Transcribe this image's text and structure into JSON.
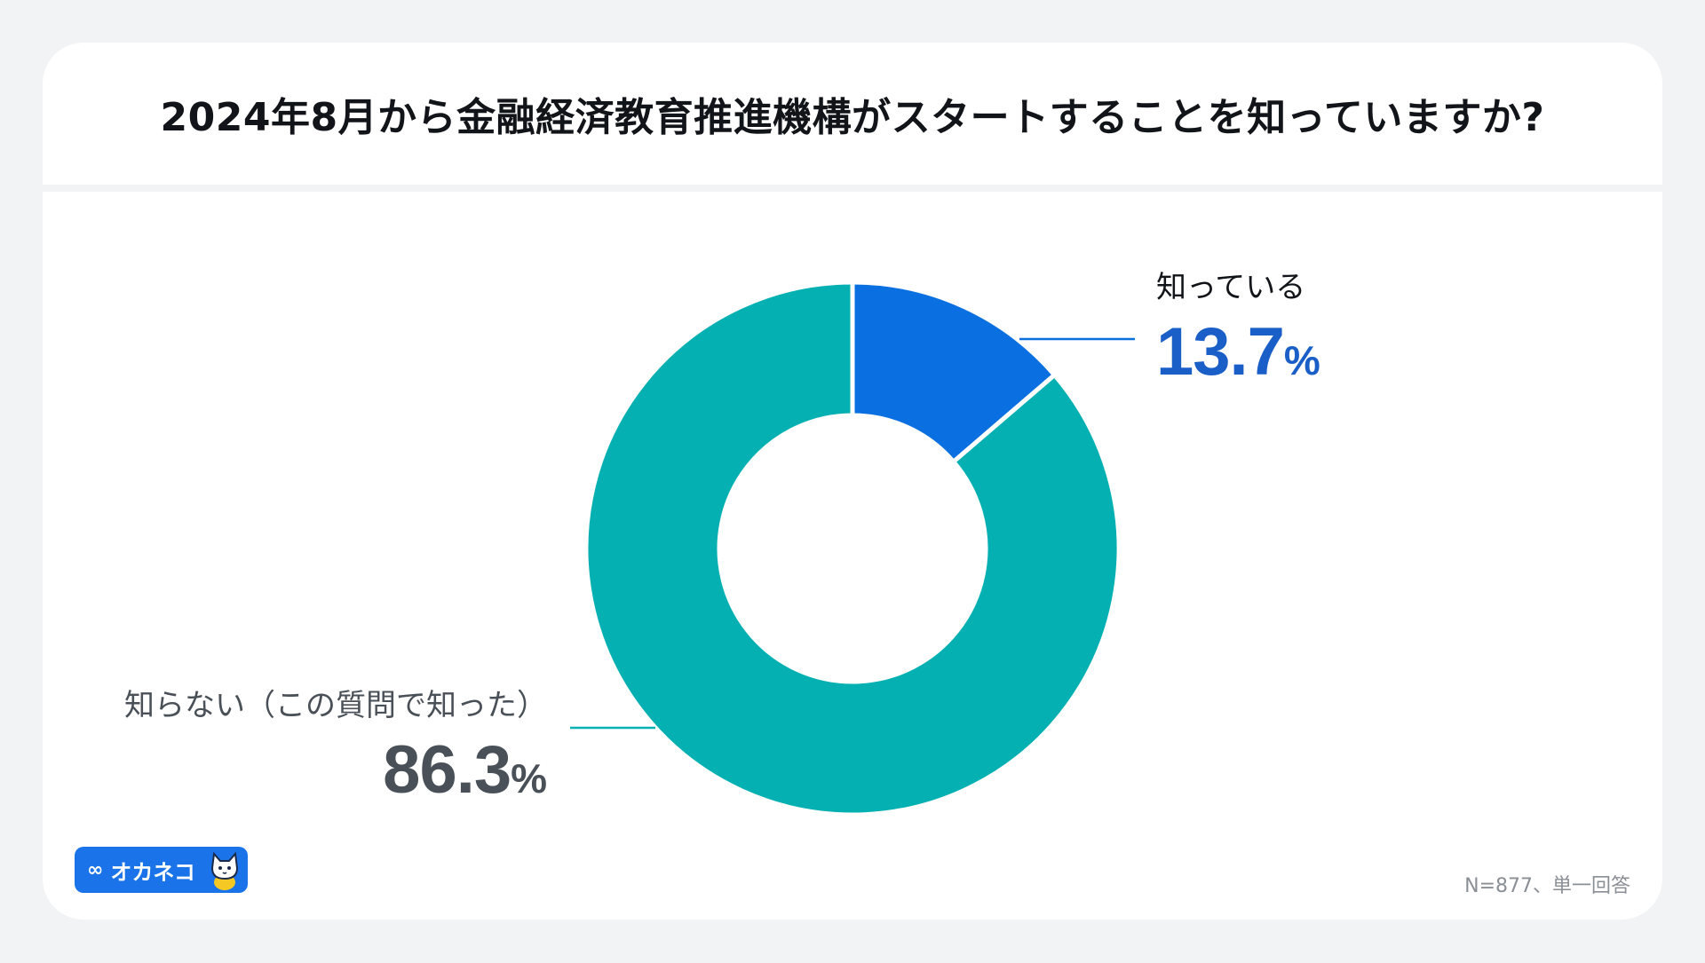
{
  "title": "2024年8月から金融経済教育推進機構がスタートすることを知っていますか?",
  "note": "N=877、単一回答",
  "logo": {
    "text": "オカネコ",
    "mark": "∞"
  },
  "chart_data": {
    "type": "pie",
    "labels": [
      "知っている",
      "知らない（この質問で知った）"
    ],
    "values": [
      13.7,
      86.3
    ],
    "display": [
      "13.7",
      "86.3"
    ],
    "unit": "%",
    "colors": [
      "#0a6fe0",
      "#05b0b3"
    ],
    "label_colors": [
      "#1a5fc8",
      "#4a5058"
    ],
    "name_colors": [
      "#111418",
      "#4a5058"
    ]
  }
}
